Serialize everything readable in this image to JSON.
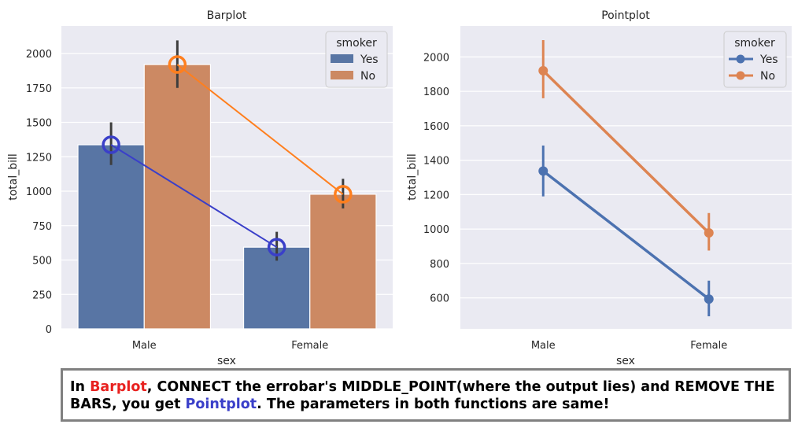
{
  "chart_data": [
    {
      "type": "bar",
      "title": "Barplot",
      "xlabel": "sex",
      "ylabel": "total_bill",
      "categories": [
        "Male",
        "Female"
      ],
      "ylim": [
        0,
        2200
      ],
      "yticks": [
        0,
        250,
        500,
        750,
        1000,
        1250,
        1500,
        1750,
        2000
      ],
      "grid": true,
      "legend": {
        "title": "smoker",
        "position": "top-right"
      },
      "series": [
        {
          "name": "Yes",
          "color": "#5875a4",
          "values": [
            1337.07,
            593.27
          ],
          "ci": [
            [
              1190,
              1500
            ],
            [
              495,
              705
            ]
          ]
        },
        {
          "name": "No",
          "color": "#cc8963",
          "values": [
            1919.75,
            977.68
          ],
          "ci": [
            [
              1750,
              2095
            ],
            [
              875,
              1090
            ]
          ]
        }
      ],
      "annotation_lines": [
        {
          "series": "Yes",
          "color": "#3a3fc9"
        },
        {
          "series": "No",
          "color": "#ff7f1e"
        }
      ]
    },
    {
      "type": "line",
      "title": "Pointplot",
      "xlabel": "sex",
      "ylabel": "total_bill",
      "categories": [
        "Male",
        "Female"
      ],
      "ylim": [
        420,
        2180
      ],
      "yticks": [
        600,
        800,
        1000,
        1200,
        1400,
        1600,
        1800,
        2000
      ],
      "grid": true,
      "legend": {
        "title": "smoker",
        "position": "top-right"
      },
      "series": [
        {
          "name": "Yes",
          "color": "#4c72b0",
          "values": [
            1337.07,
            593.27
          ],
          "ci": [
            [
              1190,
              1485
            ],
            [
              493,
              700
            ]
          ]
        },
        {
          "name": "No",
          "color": "#dd8452",
          "values": [
            1919.75,
            977.68
          ],
          "ci": [
            [
              1760,
              2098
            ],
            [
              875,
              1093
            ]
          ]
        }
      ]
    }
  ],
  "caption": {
    "part1": "In ",
    "highlight1": "Barplot",
    "highlight1_color": "#e8211f",
    "part2": ", CONNECT the errobar's MIDDLE_POINT(where the output lies) and REMOVE THE BARS, you get ",
    "highlight2": "Pointplot",
    "highlight2_color": "#3a3fc9",
    "part3": ". The parameters in both functions are same!"
  }
}
